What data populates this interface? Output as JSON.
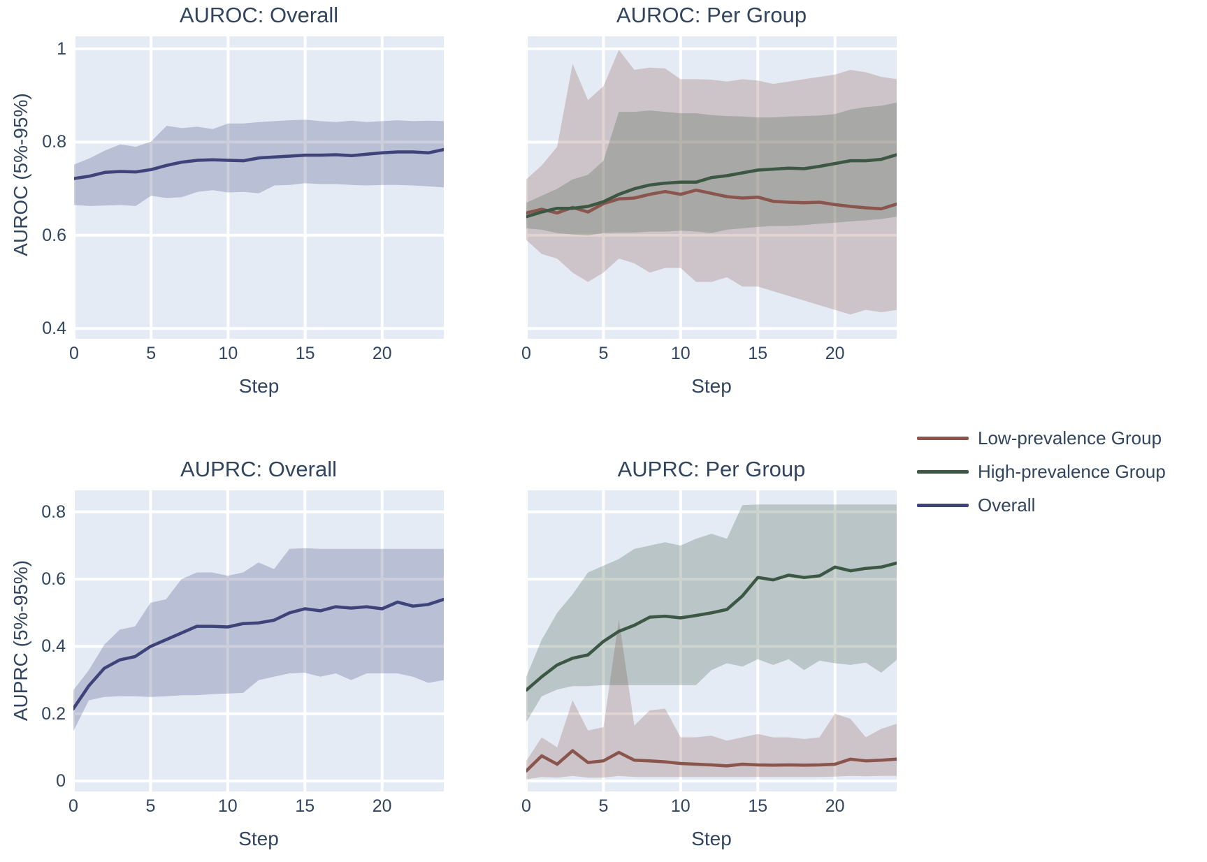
{
  "figure": {
    "background": "#ffffff",
    "plot_background": "#e5ebf5",
    "grid_color": "#ffffff",
    "text_color": "#31455e"
  },
  "ylabels": {
    "top": "AUROC (5%-95%)",
    "bottom": "AUPRC (5%-95%)"
  },
  "legend": {
    "items": [
      {
        "label": "Low-prevalence Group",
        "color": "#8a554d"
      },
      {
        "label": "High-prevalence Group",
        "color": "#3c5743"
      },
      {
        "label": "Overall",
        "color": "#3e4379"
      }
    ]
  },
  "steps_x": [
    0,
    1,
    2,
    3,
    4,
    5,
    6,
    7,
    8,
    9,
    10,
    11,
    12,
    13,
    14,
    15,
    16,
    17,
    18,
    19,
    20,
    21,
    22,
    23,
    24
  ],
  "chart_data": [
    {
      "type": "line",
      "title": "AUROC: Overall",
      "xlabel": "Step",
      "xlim": [
        0,
        24
      ],
      "ylim": [
        0.378,
        1.027
      ],
      "x_ticks": [
        0,
        5,
        10,
        15,
        20
      ],
      "x_tick_labels": [
        "0",
        "5",
        "10",
        "15",
        "20"
      ],
      "y_ticks": [
        0.4,
        0.6,
        0.8,
        1.0
      ],
      "y_tick_labels": [
        "0.4",
        "0.6",
        "0.8",
        "1"
      ],
      "grid": true,
      "band_note": "shaded band is 5%-95% interval",
      "series": [
        {
          "name": "Overall",
          "color": "#3e4379",
          "band_opacity": 0.26,
          "values": [
            0.722,
            0.727,
            0.735,
            0.737,
            0.736,
            0.741,
            0.75,
            0.757,
            0.761,
            0.762,
            0.761,
            0.76,
            0.766,
            0.768,
            0.77,
            0.772,
            0.772,
            0.773,
            0.771,
            0.774,
            0.777,
            0.779,
            0.779,
            0.777,
            0.784
          ],
          "band_lower": [
            0.665,
            0.663,
            0.664,
            0.665,
            0.663,
            0.685,
            0.68,
            0.682,
            0.693,
            0.697,
            0.692,
            0.693,
            0.69,
            0.707,
            0.708,
            0.712,
            0.71,
            0.71,
            0.708,
            0.707,
            0.708,
            0.708,
            0.707,
            0.705,
            0.703
          ],
          "band_upper": [
            0.752,
            0.765,
            0.782,
            0.795,
            0.79,
            0.801,
            0.835,
            0.83,
            0.833,
            0.828,
            0.84,
            0.84,
            0.843,
            0.845,
            0.847,
            0.848,
            0.845,
            0.843,
            0.846,
            0.843,
            0.845,
            0.847,
            0.845,
            0.846,
            0.845
          ]
        }
      ]
    },
    {
      "type": "line",
      "title": "AUROC: Per Group",
      "xlabel": "Step",
      "xlim": [
        0,
        24
      ],
      "ylim": [
        0.378,
        1.027
      ],
      "x_ticks": [
        0,
        5,
        10,
        15,
        20
      ],
      "x_tick_labels": [
        "0",
        "5",
        "10",
        "15",
        "20"
      ],
      "y_ticks": [
        0.4,
        0.6,
        0.8,
        1.0
      ],
      "y_tick_labels": null,
      "grid": true,
      "band_note": "shaded bands are 5%-95% intervals",
      "series": [
        {
          "name": "Low-prevalence Group",
          "color": "#8a554d",
          "band_opacity": 0.26,
          "values": [
            0.648,
            0.656,
            0.648,
            0.66,
            0.65,
            0.668,
            0.678,
            0.68,
            0.688,
            0.694,
            0.688,
            0.697,
            0.69,
            0.683,
            0.68,
            0.682,
            0.673,
            0.671,
            0.67,
            0.671,
            0.666,
            0.662,
            0.659,
            0.657,
            0.667
          ],
          "band_lower": [
            0.59,
            0.56,
            0.55,
            0.52,
            0.5,
            0.52,
            0.55,
            0.54,
            0.52,
            0.53,
            0.53,
            0.5,
            0.5,
            0.51,
            0.49,
            0.49,
            0.48,
            0.47,
            0.46,
            0.45,
            0.44,
            0.43,
            0.44,
            0.435,
            0.44
          ],
          "band_upper": [
            0.72,
            0.75,
            0.79,
            0.968,
            0.89,
            0.92,
            0.998,
            0.955,
            0.96,
            0.958,
            0.935,
            0.935,
            0.934,
            0.93,
            0.935,
            0.932,
            0.925,
            0.93,
            0.935,
            0.94,
            0.945,
            0.955,
            0.95,
            0.94,
            0.935
          ]
        },
        {
          "name": "High-prevalence Group",
          "color": "#3c5743",
          "band_opacity": 0.26,
          "values": [
            0.64,
            0.65,
            0.658,
            0.658,
            0.662,
            0.672,
            0.688,
            0.7,
            0.708,
            0.712,
            0.714,
            0.714,
            0.724,
            0.728,
            0.734,
            0.74,
            0.742,
            0.744,
            0.743,
            0.748,
            0.754,
            0.76,
            0.76,
            0.763,
            0.773
          ],
          "band_lower": [
            0.615,
            0.612,
            0.605,
            0.602,
            0.6,
            0.605,
            0.606,
            0.606,
            0.608,
            0.608,
            0.61,
            0.608,
            0.605,
            0.612,
            0.615,
            0.618,
            0.62,
            0.62,
            0.622,
            0.625,
            0.627,
            0.63,
            0.632,
            0.635,
            0.64
          ],
          "band_upper": [
            0.67,
            0.685,
            0.7,
            0.72,
            0.73,
            0.76,
            0.865,
            0.865,
            0.868,
            0.865,
            0.862,
            0.862,
            0.858,
            0.856,
            0.855,
            0.853,
            0.853,
            0.855,
            0.856,
            0.857,
            0.86,
            0.87,
            0.875,
            0.878,
            0.885
          ]
        }
      ]
    },
    {
      "type": "line",
      "title": "AUPRC: Overall",
      "xlabel": "Step",
      "xlim": [
        0,
        24
      ],
      "ylim": [
        -0.031,
        0.864
      ],
      "x_ticks": [
        0,
        5,
        10,
        15,
        20
      ],
      "x_tick_labels": [
        "0",
        "5",
        "10",
        "15",
        "20"
      ],
      "y_ticks": [
        0.0,
        0.2,
        0.4,
        0.6,
        0.8
      ],
      "y_tick_labels": [
        "0",
        "0.2",
        "0.4",
        "0.6",
        "0.8"
      ],
      "grid": true,
      "band_note": "shaded band is 5%-95% interval",
      "series": [
        {
          "name": "Overall",
          "color": "#3e4379",
          "band_opacity": 0.26,
          "values": [
            0.215,
            0.283,
            0.335,
            0.36,
            0.37,
            0.4,
            0.42,
            0.44,
            0.46,
            0.46,
            0.458,
            0.468,
            0.47,
            0.478,
            0.5,
            0.512,
            0.506,
            0.518,
            0.514,
            0.518,
            0.512,
            0.532,
            0.52,
            0.525,
            0.54
          ],
          "band_lower": [
            0.148,
            0.24,
            0.25,
            0.252,
            0.252,
            0.25,
            0.252,
            0.255,
            0.255,
            0.258,
            0.26,
            0.262,
            0.3,
            0.31,
            0.32,
            0.322,
            0.31,
            0.32,
            0.3,
            0.32,
            0.32,
            0.32,
            0.31,
            0.292,
            0.3
          ],
          "band_upper": [
            0.27,
            0.33,
            0.405,
            0.45,
            0.46,
            0.53,
            0.54,
            0.6,
            0.62,
            0.62,
            0.61,
            0.62,
            0.65,
            0.63,
            0.69,
            0.692,
            0.69,
            0.69,
            0.69,
            0.69,
            0.69,
            0.69,
            0.69,
            0.69,
            0.69
          ]
        }
      ]
    },
    {
      "type": "line",
      "title": "AUPRC: Per Group",
      "xlabel": "Step",
      "xlim": [
        0,
        24
      ],
      "ylim": [
        -0.031,
        0.864
      ],
      "x_ticks": [
        0,
        5,
        10,
        15,
        20
      ],
      "x_tick_labels": [
        "0",
        "5",
        "10",
        "15",
        "20"
      ],
      "y_ticks": [
        0.0,
        0.2,
        0.4,
        0.6,
        0.8
      ],
      "y_tick_labels": null,
      "grid": true,
      "band_note": "shaded bands are 5%-95% intervals",
      "series": [
        {
          "name": "Low-prevalence Group",
          "color": "#8a554d",
          "band_opacity": 0.26,
          "values": [
            0.03,
            0.075,
            0.05,
            0.09,
            0.055,
            0.06,
            0.085,
            0.062,
            0.06,
            0.057,
            0.052,
            0.05,
            0.048,
            0.045,
            0.05,
            0.048,
            0.047,
            0.048,
            0.047,
            0.048,
            0.05,
            0.065,
            0.06,
            0.062,
            0.065
          ],
          "band_lower": [
            0.005,
            0.012,
            0.01,
            0.015,
            0.01,
            0.01,
            0.015,
            0.012,
            0.012,
            0.012,
            0.012,
            0.012,
            0.012,
            0.012,
            0.012,
            0.012,
            0.012,
            0.012,
            0.012,
            0.012,
            0.013,
            0.015,
            0.014,
            0.015,
            0.015
          ],
          "band_upper": [
            0.06,
            0.13,
            0.1,
            0.24,
            0.15,
            0.16,
            0.48,
            0.165,
            0.21,
            0.215,
            0.13,
            0.13,
            0.135,
            0.12,
            0.13,
            0.14,
            0.13,
            0.13,
            0.125,
            0.13,
            0.2,
            0.185,
            0.13,
            0.155,
            0.17
          ]
        },
        {
          "name": "High-prevalence Group",
          "color": "#3c5743",
          "band_opacity": 0.26,
          "values": [
            0.27,
            0.31,
            0.345,
            0.365,
            0.375,
            0.415,
            0.445,
            0.463,
            0.487,
            0.49,
            0.485,
            0.492,
            0.5,
            0.51,
            0.55,
            0.605,
            0.598,
            0.612,
            0.605,
            0.61,
            0.636,
            0.625,
            0.632,
            0.636,
            0.648
          ],
          "band_lower": [
            0.175,
            0.252,
            0.272,
            0.282,
            0.282,
            0.285,
            0.285,
            0.285,
            0.285,
            0.285,
            0.285,
            0.285,
            0.33,
            0.35,
            0.34,
            0.362,
            0.345,
            0.362,
            0.33,
            0.358,
            0.35,
            0.345,
            0.352,
            0.322,
            0.36
          ],
          "band_upper": [
            0.31,
            0.42,
            0.5,
            0.555,
            0.62,
            0.64,
            0.66,
            0.69,
            0.7,
            0.71,
            0.7,
            0.72,
            0.735,
            0.72,
            0.82,
            0.822,
            0.822,
            0.822,
            0.822,
            0.822,
            0.822,
            0.822,
            0.822,
            0.822,
            0.822
          ]
        }
      ]
    }
  ]
}
